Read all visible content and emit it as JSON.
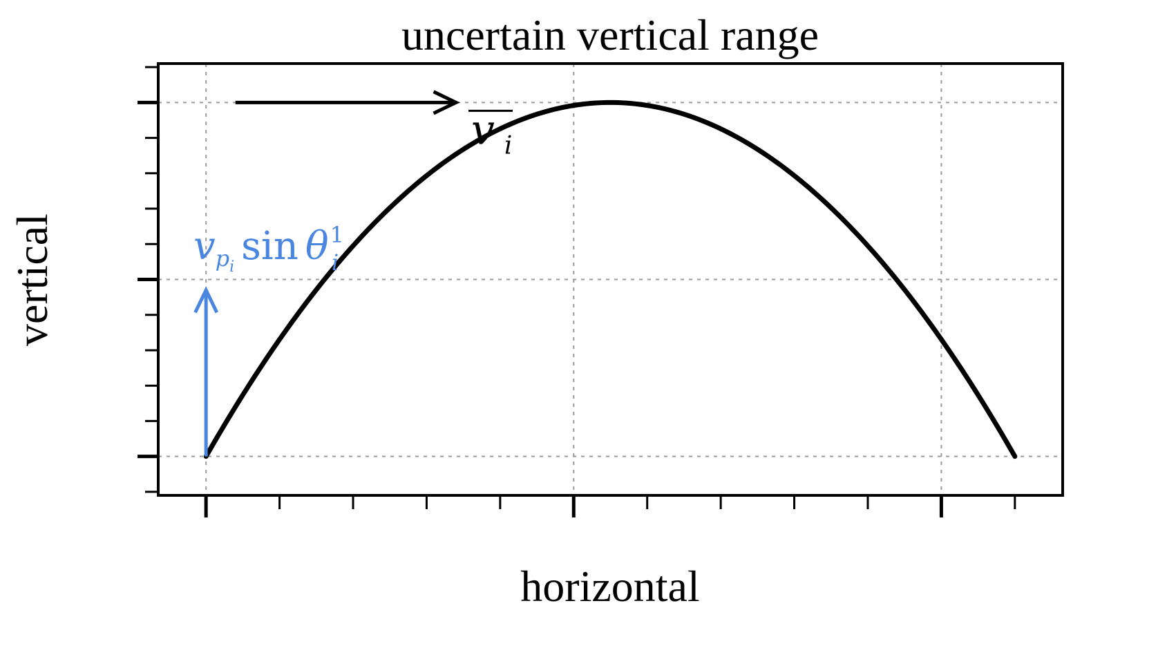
{
  "chart_data": {
    "type": "line",
    "title": "uncertain vertical range",
    "xlabel": "horizontal",
    "ylabel": "vertical",
    "xlim": [
      -0.13,
      2.33
    ],
    "ylim": [
      -0.11,
      1.11
    ],
    "grid": true,
    "major_x_ticks": [
      0,
      1,
      2
    ],
    "minor_x_ticks": [
      0.2,
      0.4,
      0.6,
      0.8,
      1.2,
      1.4,
      1.6,
      1.8,
      2.2
    ],
    "major_y_ticks": [
      0,
      0.5,
      1
    ],
    "minor_y_ticks": [
      -0.1,
      0.1,
      0.2,
      0.3,
      0.4,
      0.6,
      0.7,
      0.8,
      0.9,
      1.1
    ],
    "series": [
      {
        "type": "parabola",
        "x_start": 0,
        "x_end": 2.2,
        "x_peak": 1.1,
        "y_peak": 1,
        "color": "#000000"
      }
    ],
    "annotations": [
      {
        "kind": "arrow",
        "from": [
          0.08,
          1.0
        ],
        "to": [
          0.68,
          1.0
        ],
        "color": "#000000",
        "label_main": "v",
        "label_sub": "i",
        "label_overbar": true
      },
      {
        "kind": "arrow",
        "from": [
          0.0,
          0.0
        ],
        "to": [
          0.0,
          0.47
        ],
        "color": "#4a86e0",
        "label_main": "v",
        "label_sub1": "p",
        "label_sub2": "i",
        "label_func": "sin",
        "label_theta": "θ",
        "label_theta_sup": "1",
        "label_theta_sub": "i"
      }
    ]
  }
}
